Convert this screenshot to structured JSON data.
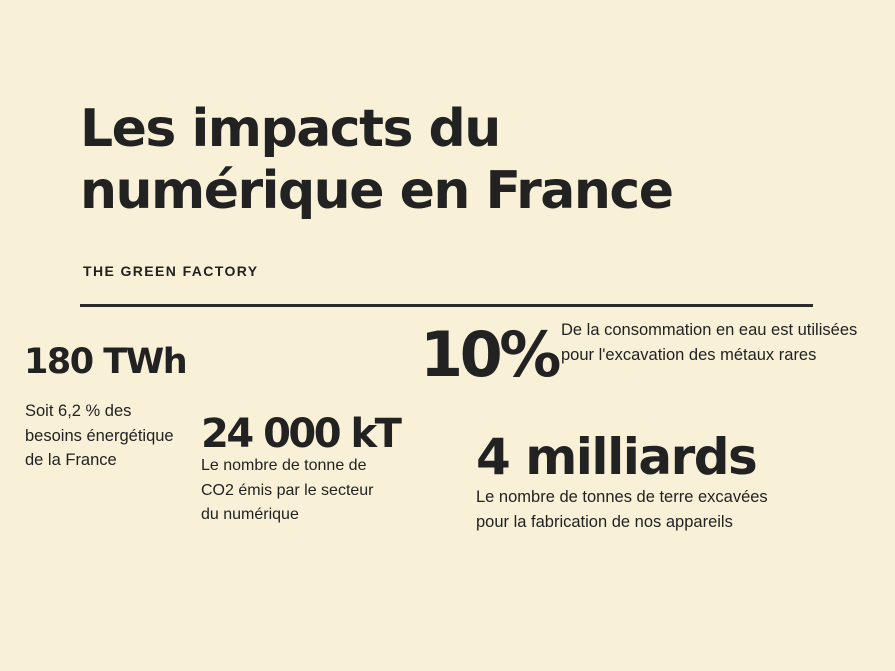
{
  "header": {
    "title": "Les impacts du numérique en France",
    "subtitle": "THE GREEN FACTORY"
  },
  "stats": [
    {
      "value": "180 TWh",
      "description": "Soit 6,2 % des besoins énergétique de la France"
    },
    {
      "value": "24 000 kT",
      "description": "Le nombre de tonne de CO2 émis par le secteur du numérique"
    },
    {
      "value": "10%",
      "description": "De la consommation en eau  est utilisées pour l'excavation des métaux rares"
    },
    {
      "value": "4 milliards",
      "description": "Le nombre de tonnes de terre excavées pour la fabrication de nos appareils"
    }
  ],
  "colors": {
    "background": "#f8f1d8",
    "text": "#222222",
    "divider": "#2a2a2a"
  }
}
